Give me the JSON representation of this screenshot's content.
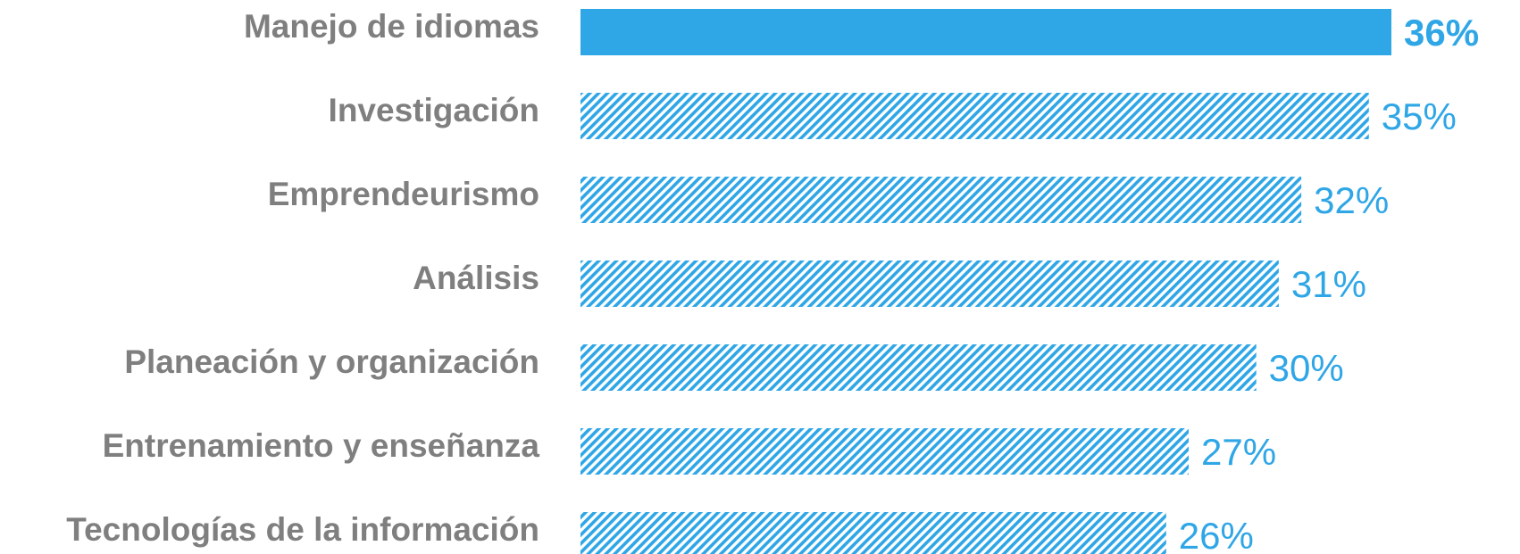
{
  "chart_data": {
    "type": "bar",
    "orientation": "horizontal",
    "categories": [
      "Manejo de idiomas",
      "Investigación",
      "Emprendeurismo",
      "Análisis",
      "Planeación y organización",
      "Entrenamiento y enseñanza",
      "Tecnologías de la información"
    ],
    "values": [
      36,
      35,
      32,
      31,
      30,
      27,
      26
    ],
    "value_labels": [
      "36%",
      "35%",
      "32%",
      "31%",
      "30%",
      "27%",
      "26%"
    ],
    "color": "#2fa6e6",
    "highlight": 0
  }
}
